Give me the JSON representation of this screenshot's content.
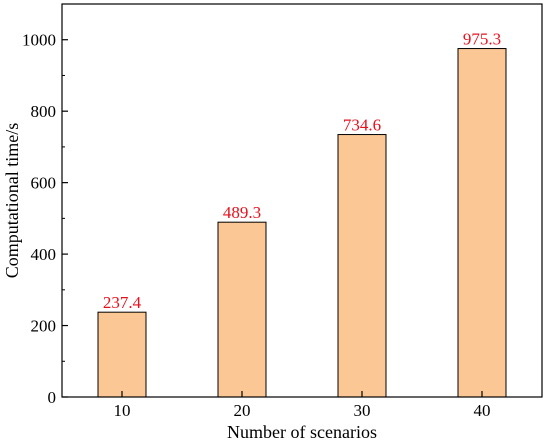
{
  "chart_data": {
    "type": "bar",
    "categories": [
      "10",
      "20",
      "30",
      "40"
    ],
    "values": [
      237.4,
      489.3,
      734.6,
      975.3
    ],
    "data_labels": [
      "237.4",
      "489.3",
      "734.6",
      "975.3"
    ],
    "xlabel": "Number of scenarios",
    "ylabel": "Computational time/s",
    "ylim": [
      0,
      1100
    ],
    "yticks": [
      0,
      200,
      400,
      600,
      800,
      1000
    ],
    "grid": false,
    "bar_color": "#fbc794",
    "bar_edge_color": "#000000",
    "label_color": "#e8101c"
  }
}
